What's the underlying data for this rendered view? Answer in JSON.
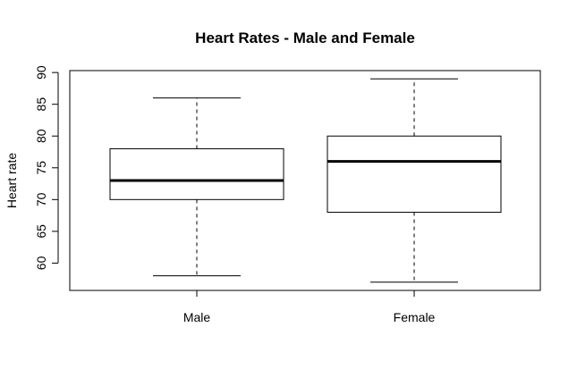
{
  "chart_data": {
    "type": "box",
    "title": "Heart Rates - Male and Female",
    "xlabel": "",
    "ylabel": "Heart rate",
    "categories": [
      "Male",
      "Female"
    ],
    "boxes": [
      {
        "name": "Male",
        "min": 58,
        "q1": 70,
        "median": 73,
        "q3": 78,
        "max": 86
      },
      {
        "name": "Female",
        "min": 57,
        "q1": 68,
        "median": 76,
        "q3": 80,
        "max": 89
      }
    ],
    "y_ticks": [
      60,
      65,
      70,
      75,
      80,
      85,
      90
    ],
    "ylim": [
      55.7,
      90.3
    ],
    "grid": false
  }
}
